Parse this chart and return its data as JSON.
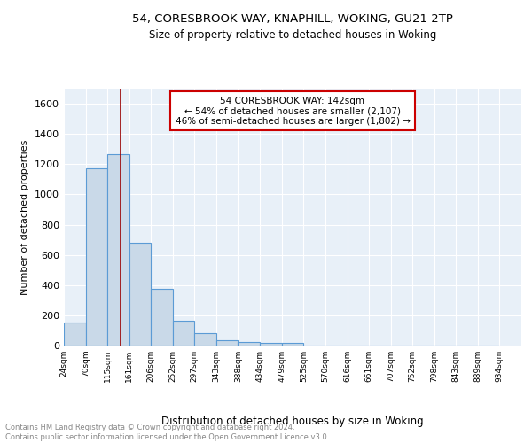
{
  "title1": "54, CORESBROOK WAY, KNAPHILL, WOKING, GU21 2TP",
  "title2": "Size of property relative to detached houses in Woking",
  "xlabel": "Distribution of detached houses by size in Woking",
  "ylabel": "Number of detached properties",
  "annotation_line1": "54 CORESBROOK WAY: 142sqm",
  "annotation_line2": "← 54% of detached houses are smaller (2,107)",
  "annotation_line3": "46% of semi-detached houses are larger (1,802) →",
  "footer1": "Contains HM Land Registry data © Crown copyright and database right 2024.",
  "footer2": "Contains public sector information licensed under the Open Government Licence v3.0.",
  "bar_color": "#c9d9e8",
  "bar_edge_color": "#5b9bd5",
  "grid_color": "#ffffff",
  "bg_color": "#e8f0f8",
  "annotation_box_color": "#ffffff",
  "annotation_box_edge": "#cc0000",
  "vline_color": "#990000",
  "bins": [
    24,
    70,
    115,
    161,
    206,
    252,
    297,
    343,
    388,
    434,
    479,
    525,
    570,
    616,
    661,
    707,
    752,
    798,
    843,
    889,
    934
  ],
  "counts": [
    150,
    1175,
    1265,
    680,
    375,
    165,
    85,
    35,
    22,
    20,
    15,
    0,
    0,
    0,
    0,
    0,
    0,
    0,
    0,
    0
  ],
  "property_size": 142,
  "ylim": [
    0,
    1700
  ],
  "yticks": [
    0,
    200,
    400,
    600,
    800,
    1000,
    1200,
    1400,
    1600
  ],
  "tick_labels": [
    "24sqm",
    "70sqm",
    "115sqm",
    "161sqm",
    "206sqm",
    "252sqm",
    "297sqm",
    "343sqm",
    "388sqm",
    "434sqm",
    "479sqm",
    "525sqm",
    "570sqm",
    "616sqm",
    "661sqm",
    "707sqm",
    "752sqm",
    "798sqm",
    "843sqm",
    "889sqm",
    "934sqm"
  ]
}
